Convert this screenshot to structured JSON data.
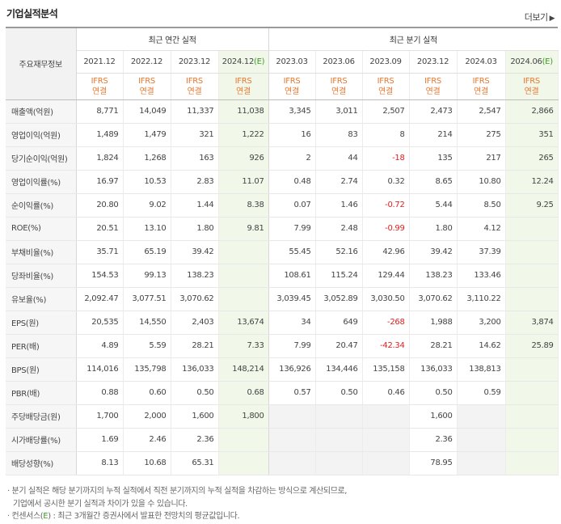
{
  "title": "기업실적분석",
  "more_label": "더보기",
  "more_arrow": "▶",
  "corner_label": "주요재무정보",
  "groups": {
    "annual": "최근 연간 실적",
    "quarter": "최근 분기 실적"
  },
  "periods": [
    {
      "label": "2021.12",
      "est": false
    },
    {
      "label": "2022.12",
      "est": false
    },
    {
      "label": "2023.12",
      "est": false
    },
    {
      "label": "2024.12",
      "est": true
    },
    {
      "label": "2023.03",
      "est": false
    },
    {
      "label": "2023.06",
      "est": false
    },
    {
      "label": "2023.09",
      "est": false
    },
    {
      "label": "2023.12",
      "est": false
    },
    {
      "label": "2024.03",
      "est": false
    },
    {
      "label": "2024.06",
      "est": true
    }
  ],
  "est_mark": "(E)",
  "ifrs": {
    "line1": "IFRS",
    "line2": "연결"
  },
  "rows": [
    {
      "label": "매출액(억원)",
      "values": [
        "8,771",
        "14,049",
        "11,337",
        "11,038",
        "3,345",
        "3,011",
        "2,507",
        "2,473",
        "2,547",
        "2,866"
      ]
    },
    {
      "label": "영업이익(억원)",
      "values": [
        "1,489",
        "1,479",
        "321",
        "1,222",
        "16",
        "83",
        "8",
        "214",
        "275",
        "351"
      ]
    },
    {
      "label": "당기순이익(억원)",
      "values": [
        "1,824",
        "1,268",
        "163",
        "926",
        "2",
        "44",
        "-18",
        "135",
        "217",
        "265"
      ]
    },
    {
      "label": "영업이익률(%)",
      "values": [
        "16.97",
        "10.53",
        "2.83",
        "11.07",
        "0.48",
        "2.74",
        "0.32",
        "8.65",
        "10.80",
        "12.24"
      ]
    },
    {
      "label": "순이익률(%)",
      "values": [
        "20.80",
        "9.02",
        "1.44",
        "8.38",
        "0.07",
        "1.46",
        "-0.72",
        "5.44",
        "8.50",
        "9.25"
      ]
    },
    {
      "label": "ROE(%)",
      "values": [
        "20.51",
        "13.10",
        "1.80",
        "9.81",
        "7.99",
        "2.48",
        "-0.99",
        "1.80",
        "4.12",
        ""
      ]
    },
    {
      "label": "부채비율(%)",
      "values": [
        "35.71",
        "65.19",
        "39.42",
        "",
        "55.45",
        "52.16",
        "42.96",
        "39.42",
        "37.39",
        ""
      ]
    },
    {
      "label": "당좌비율(%)",
      "values": [
        "154.53",
        "99.13",
        "138.23",
        "",
        "108.61",
        "115.24",
        "129.44",
        "138.23",
        "133.46",
        ""
      ]
    },
    {
      "label": "유보율(%)",
      "values": [
        "2,092.47",
        "3,077.51",
        "3,070.62",
        "",
        "3,039.45",
        "3,052.89",
        "3,030.50",
        "3,070.62",
        "3,110.22",
        ""
      ]
    },
    {
      "label": "EPS(원)",
      "values": [
        "20,535",
        "14,550",
        "2,403",
        "13,674",
        "34",
        "649",
        "-268",
        "1,988",
        "3,200",
        "3,874"
      ]
    },
    {
      "label": "PER(배)",
      "values": [
        "4.89",
        "5.59",
        "28.21",
        "7.33",
        "7.99",
        "20.47",
        "-42.34",
        "28.21",
        "14.62",
        "25.89"
      ]
    },
    {
      "label": "BPS(원)",
      "values": [
        "114,016",
        "135,798",
        "136,033",
        "148,214",
        "136,926",
        "134,446",
        "135,158",
        "136,033",
        "138,813",
        ""
      ]
    },
    {
      "label": "PBR(배)",
      "values": [
        "0.88",
        "0.60",
        "0.50",
        "0.68",
        "0.57",
        "0.50",
        "0.46",
        "0.50",
        "0.59",
        ""
      ]
    },
    {
      "label": "주당배당금(원)",
      "values": [
        "1,700",
        "2,000",
        "1,600",
        "1,800",
        "",
        "",
        "",
        "1,600",
        "",
        ""
      ]
    },
    {
      "label": "시가배당률(%)",
      "values": [
        "1.69",
        "2.46",
        "2.36",
        "",
        "",
        "",
        "",
        "2.36",
        "",
        ""
      ]
    },
    {
      "label": "배당성향(%)",
      "values": [
        "8.13",
        "10.68",
        "65.31",
        "",
        "",
        "",
        "",
        "78.95",
        "",
        ""
      ]
    }
  ],
  "notes": {
    "line1": "· 분기 실적은 해당 분기까지의 누적 실적에서 직전 분기까지의 누적 실적을 차감하는 방식으로 계산되므로,",
    "line2": "기업에서 공시한 분기 실적과 차이가 있을 수 있습니다.",
    "line3_pre": "· 컨센서스(",
    "line3_mark": "E",
    "line3_post": ") : 최근 3개월간 증권사에서 발표한 전망치의 평균값입니다."
  }
}
